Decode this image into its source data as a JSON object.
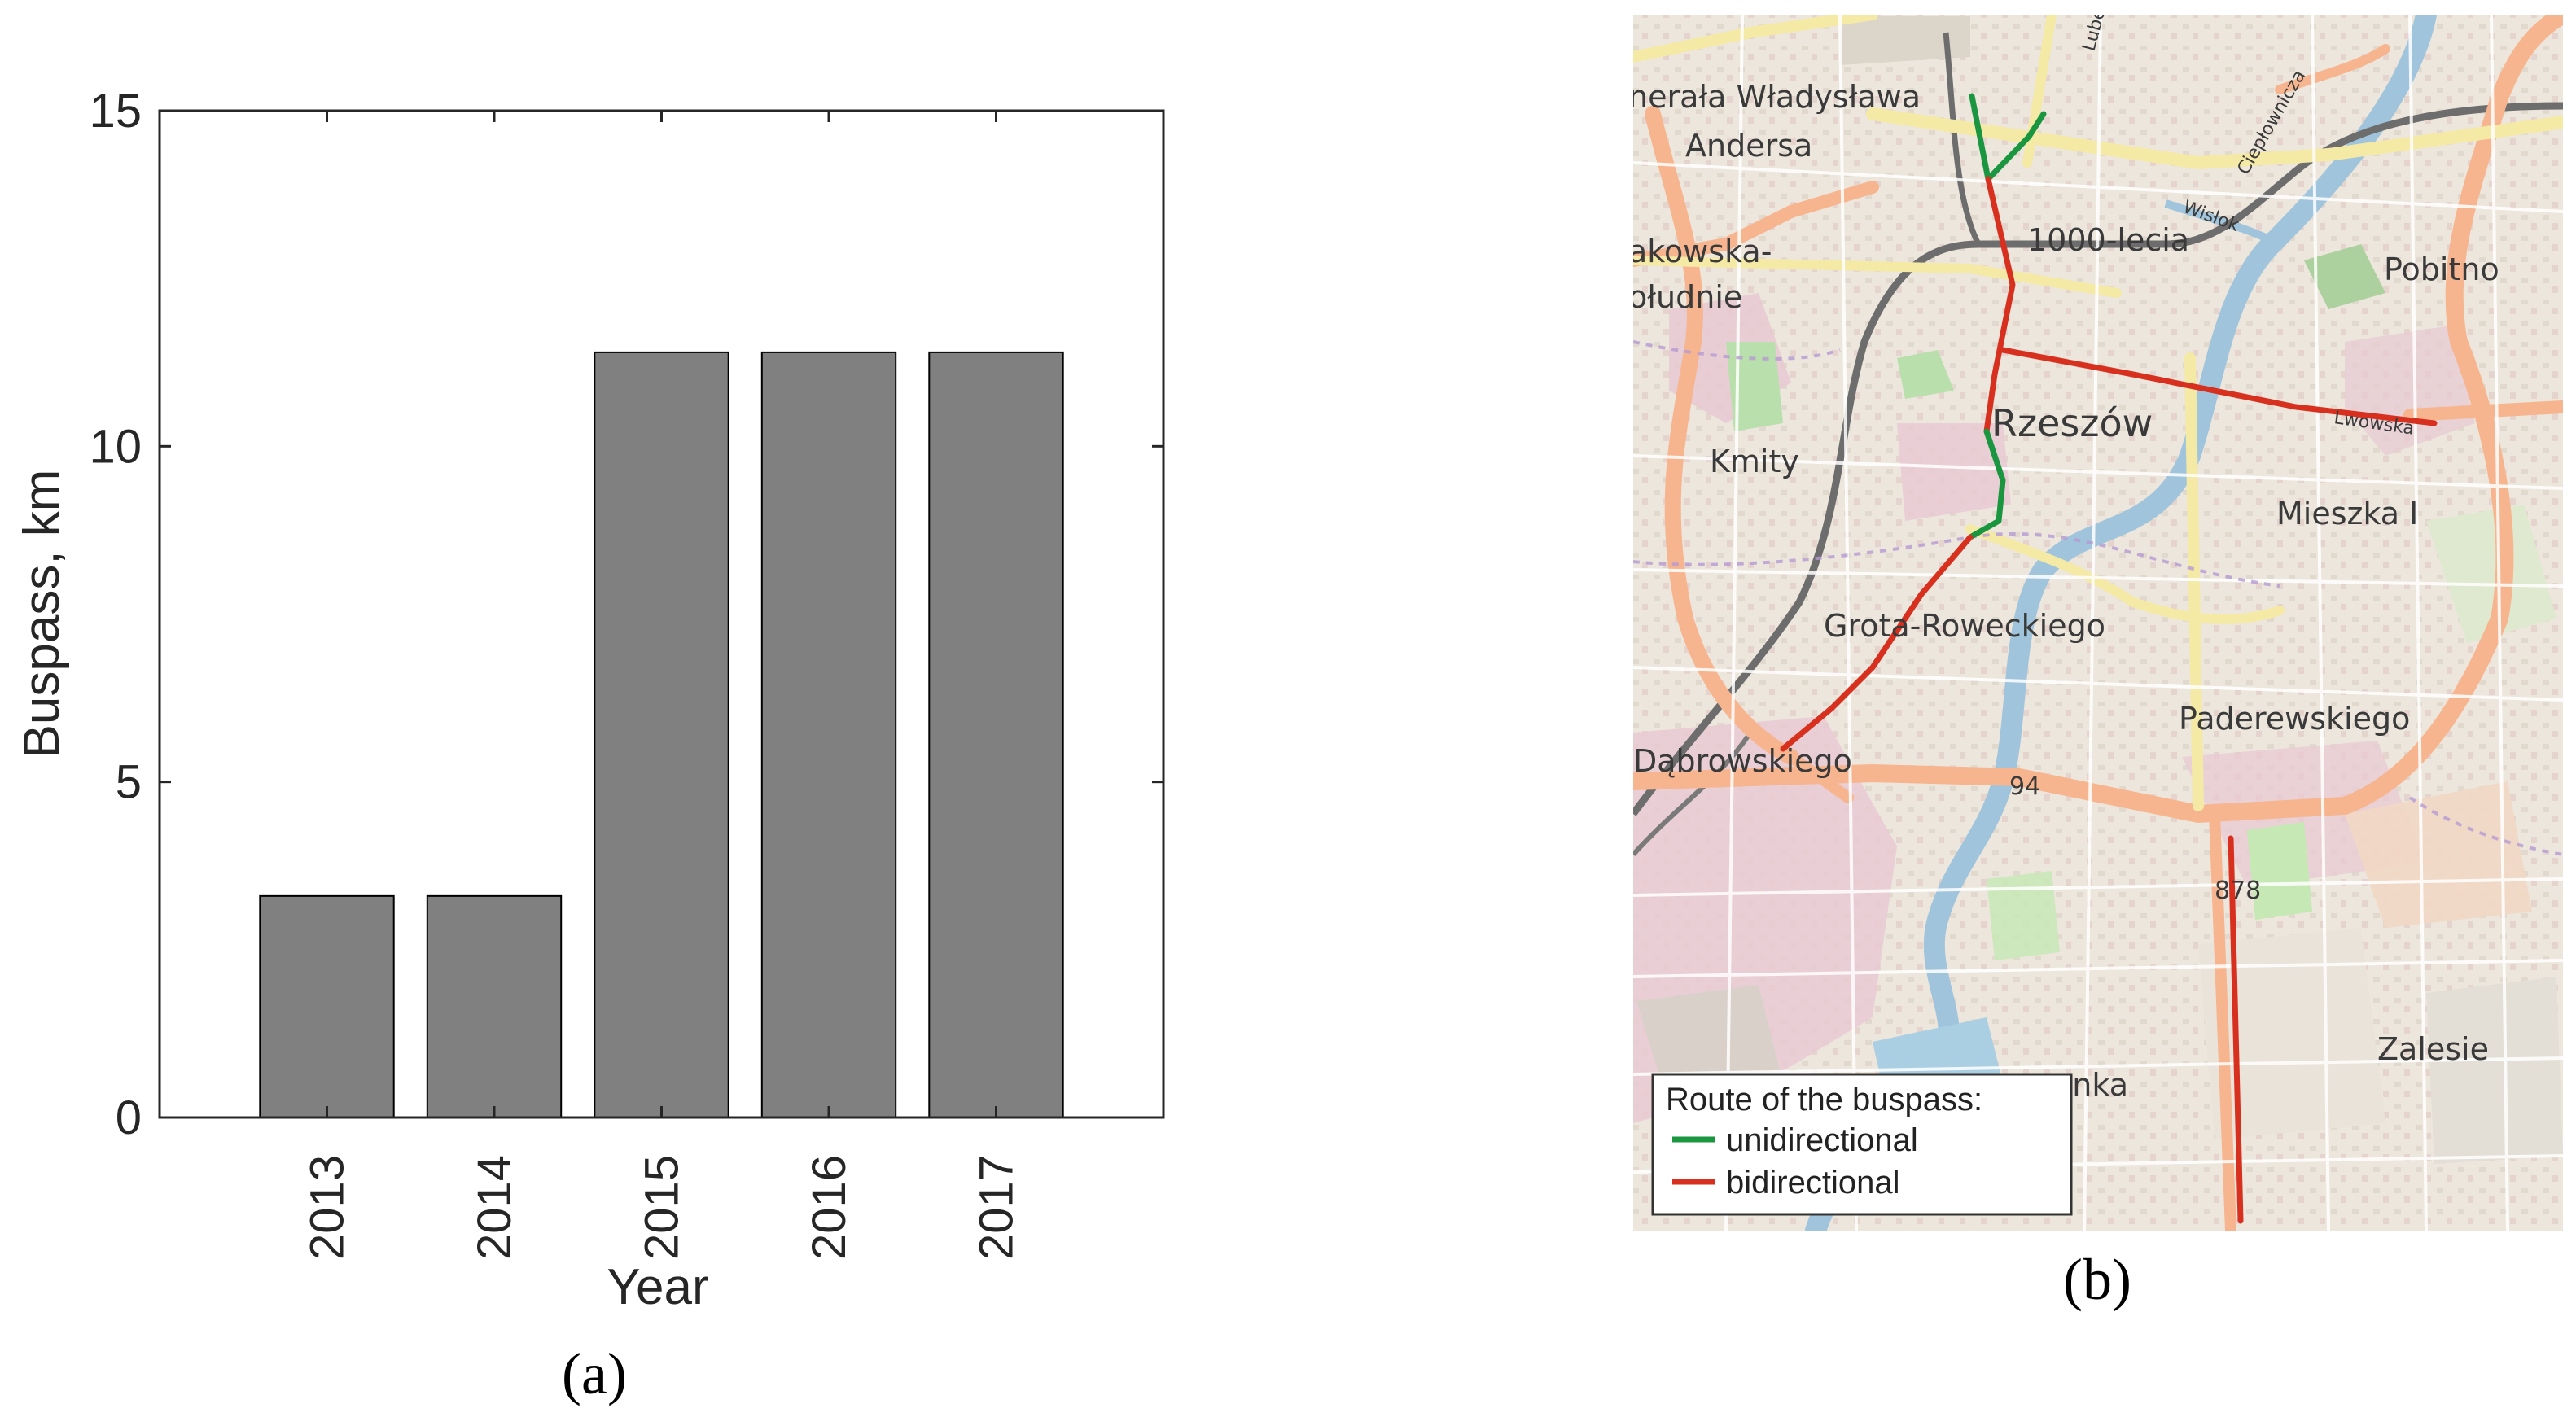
{
  "chart_data": {
    "type": "bar",
    "categories": [
      "2013",
      "2014",
      "2015",
      "2016",
      "2017"
    ],
    "values": [
      3.3,
      3.3,
      11.4,
      11.4,
      11.4
    ],
    "xlabel": "Year",
    "ylabel": "Buspass, km",
    "ylim": [
      0,
      15
    ],
    "yticks": [
      0,
      5,
      10,
      15
    ],
    "grid": false,
    "bar_color": "#808080",
    "caption": "(a)"
  },
  "map": {
    "caption": "(b)",
    "place_labels": [
      "nerała Władysława",
      "Andersa",
      "akowska-",
      "ołudnie",
      "1000-lecia",
      "Pobitno",
      "Rzeszów",
      "Kmity",
      "Mieszka I",
      "Grota-Roweckiego",
      "Paderewskiego",
      "Dąbrowskiego",
      "Zalesie",
      "anka"
    ],
    "road_numbers": [
      "94",
      "878"
    ],
    "street_labels": [
      "Lwowska",
      "Ciepłownicza",
      "Wisłok",
      "Lubel"
    ],
    "legend": {
      "title": "Route of the buspass:",
      "items": [
        {
          "label": "unidirectional",
          "color": "#1a9641"
        },
        {
          "label": "bidirectional",
          "color": "#d7301f"
        }
      ]
    }
  }
}
